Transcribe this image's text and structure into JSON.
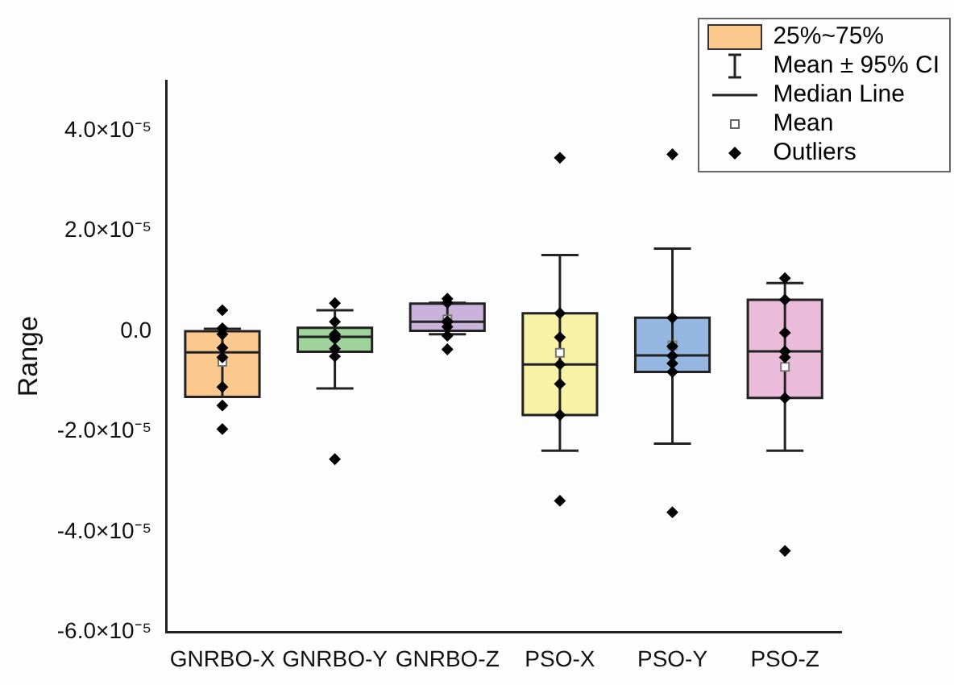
{
  "chart_data": {
    "type": "box",
    "ylabel": "Range",
    "categories": [
      "GNRBO-X",
      "GNRBO-Y",
      "GNRBO-Z",
      "PSO-X",
      "PSO-Y",
      "PSO-Z"
    ],
    "colors": [
      "#fbc98e",
      "#9fd39b",
      "#c9b3db",
      "#f8f2a6",
      "#94b6e0",
      "#ebbcd9"
    ],
    "boxes": [
      {
        "low": -1.31e-05,
        "q1": -1.31e-05,
        "median": -4.2e-06,
        "q3": 0.0,
        "high": 5e-07,
        "mean": -6.1e-06,
        "outliers": [
          4.2e-06,
          6e-07,
          -6e-07,
          -3.3e-06,
          -5.2e-06,
          -1.11e-05,
          -1.48e-05,
          -1.95e-05
        ]
      },
      {
        "low": -1.14e-05,
        "q1": -4.1e-06,
        "median": -1.1e-06,
        "q3": 7e-07,
        "high": 4.2e-06,
        "outliers": [
          5.6e-06,
          1.9e-06,
          -6e-07,
          -8e-07,
          -1.5e-06,
          -3.5e-06,
          -5e-06,
          -2.55e-05
        ]
      },
      {
        "low": -6e-07,
        "q1": 1e-07,
        "median": 1.9e-06,
        "q3": 5.5e-06,
        "high": 5.7e-06,
        "mean": 2.4e-06,
        "outliers": [
          6.5e-06,
          5.7e-06,
          2e-06,
          1.9e-06,
          9e-07,
          -9e-07,
          -3.6e-06
        ]
      },
      {
        "low": -2.38e-05,
        "q1": -1.67e-05,
        "median": -6.6e-06,
        "q3": 3.6e-06,
        "high": 1.52e-05,
        "mean": -4.3e-06,
        "outliers": [
          3.46e-05,
          3.6e-06,
          -1.2e-06,
          -6.6e-06,
          -1.05e-05,
          -1.67e-05,
          -3.38e-05
        ]
      },
      {
        "low": -2.24e-05,
        "q1": -8.1e-06,
        "median": -4.8e-06,
        "q3": 2.7e-06,
        "high": 1.65e-05,
        "mean": -2.8e-06,
        "outliers": [
          3.53e-05,
          2.7e-06,
          -3e-06,
          -4.9e-06,
          -6.4e-06,
          -8.1e-06,
          -3.61e-05
        ]
      },
      {
        "low": -2.38e-05,
        "q1": -1.33e-05,
        "median": -4e-06,
        "q3": 6.3e-06,
        "high": 9.6e-06,
        "mean": -7.1e-06,
        "outliers": [
          1.06e-05,
          6.3e-06,
          -3e-07,
          -4e-06,
          -5.2e-06,
          -1.33e-05,
          -4.38e-05
        ]
      }
    ],
    "ylim": [
      -6e-05,
      5e-05
    ],
    "yticks": [
      {
        "value": -6e-05,
        "label": "-6.0×10⁻⁵"
      },
      {
        "value": -4e-05,
        "label": "-4.0×10⁻⁵"
      },
      {
        "value": -2e-05,
        "label": "-2.0×10⁻⁵"
      },
      {
        "value": 0,
        "label": "0.0"
      },
      {
        "value": 2e-05,
        "label": "2.0×10⁻⁵"
      },
      {
        "value": 4e-05,
        "label": "4.0×10⁻⁵"
      }
    ],
    "annotations": [
      "25%~75%",
      "Mean ± 95% CI",
      "Median Line",
      "Mean",
      "Outliers"
    ]
  }
}
